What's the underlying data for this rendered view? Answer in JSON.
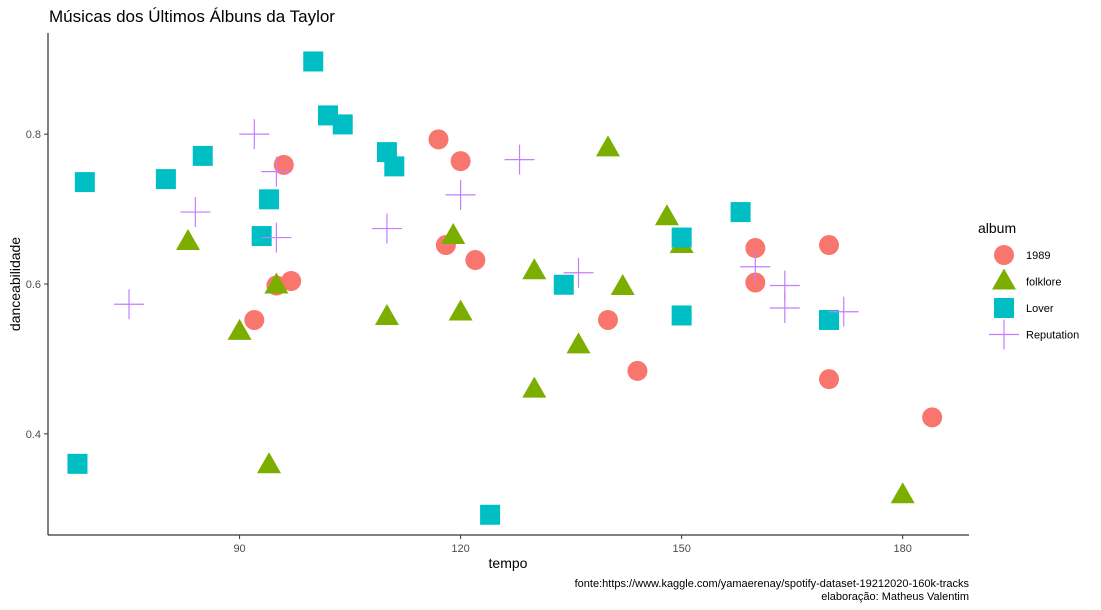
{
  "chart_data": {
    "type": "scatter",
    "title": "Músicas dos Últimos Álbuns da Taylor",
    "xlabel": "tempo",
    "ylabel": "danceabilidade",
    "xlim": [
      64,
      189
    ],
    "ylim": [
      0.265,
      0.935
    ],
    "x_ticks": [
      90,
      120,
      150,
      180
    ],
    "x_tick_labels": [
      "90",
      "120",
      "150",
      "180"
    ],
    "y_ticks": [
      0.4,
      0.6,
      0.8
    ],
    "y_tick_labels": [
      "0.4",
      "0.6",
      "0.8"
    ],
    "grid": false,
    "legend": {
      "title": "album",
      "placement": "right",
      "entries": [
        "1989",
        "folklore",
        "Lover",
        "Reputation"
      ]
    },
    "caption": [
      "fonte:https://www.kaggle.com/yamaerenay/spotify-dataset-19212020-160k-tracks",
      "elaboração: Matheus Valentim"
    ],
    "series": [
      {
        "name": "1989",
        "marker": "circle",
        "color": "#F8766D",
        "points": [
          [
            96,
            0.759
          ],
          [
            117,
            0.793
          ],
          [
            120,
            0.764
          ],
          [
            118,
            0.652
          ],
          [
            122,
            0.632
          ],
          [
            95,
            0.598
          ],
          [
            97,
            0.604
          ],
          [
            92,
            0.552
          ],
          [
            140,
            0.552
          ],
          [
            144,
            0.484
          ],
          [
            160,
            0.648
          ],
          [
            160,
            0.602
          ],
          [
            170,
            0.652
          ],
          [
            170,
            0.473
          ],
          [
            184,
            0.422
          ]
        ]
      },
      {
        "name": "folklore",
        "marker": "triangle",
        "color": "#7CAE00",
        "points": [
          [
            83,
            0.656
          ],
          [
            95,
            0.598
          ],
          [
            90,
            0.536
          ],
          [
            94,
            0.358
          ],
          [
            110,
            0.556
          ],
          [
            119,
            0.664
          ],
          [
            120,
            0.562
          ],
          [
            130,
            0.617
          ],
          [
            130,
            0.459
          ],
          [
            136,
            0.518
          ],
          [
            140,
            0.781
          ],
          [
            142,
            0.596
          ],
          [
            148,
            0.689
          ],
          [
            150,
            0.652
          ],
          [
            180,
            0.318
          ]
        ]
      },
      {
        "name": "Lover",
        "marker": "square",
        "color": "#00BFC4",
        "points": [
          [
            69,
            0.736
          ],
          [
            80,
            0.74
          ],
          [
            85,
            0.771
          ],
          [
            68,
            0.36
          ],
          [
            94,
            0.713
          ],
          [
            93,
            0.664
          ],
          [
            100,
            0.897
          ],
          [
            102,
            0.825
          ],
          [
            104,
            0.813
          ],
          [
            110,
            0.776
          ],
          [
            111,
            0.757
          ],
          [
            134,
            0.599
          ],
          [
            124,
            0.292
          ],
          [
            150,
            0.662
          ],
          [
            150,
            0.558
          ],
          [
            158,
            0.696
          ],
          [
            170,
            0.552
          ]
        ]
      },
      {
        "name": "Reputation",
        "marker": "cross",
        "color": "#C77CFF",
        "points": [
          [
            75,
            0.573
          ],
          [
            84,
            0.696
          ],
          [
            92,
            0.8
          ],
          [
            95,
            0.75
          ],
          [
            95,
            0.662
          ],
          [
            110,
            0.674
          ],
          [
            120,
            0.719
          ],
          [
            128,
            0.766
          ],
          [
            136,
            0.615
          ],
          [
            160,
            0.623
          ],
          [
            164,
            0.598
          ],
          [
            164,
            0.568
          ],
          [
            172,
            0.563
          ]
        ]
      }
    ]
  }
}
